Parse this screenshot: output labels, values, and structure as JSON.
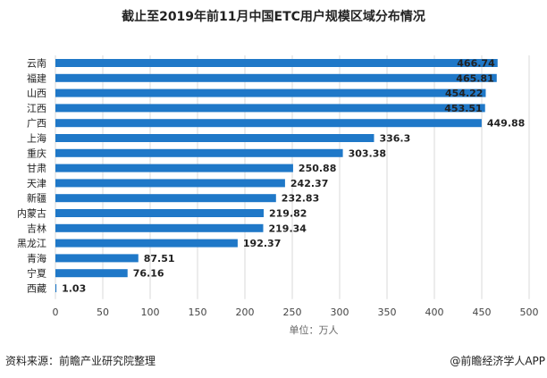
{
  "chart_data": {
    "type": "bar",
    "orientation": "horizontal",
    "title": "截止至2019年前11月中国ETC用户规模区域分布情况",
    "categories": [
      "云南",
      "福建",
      "山西",
      "江西",
      "广西",
      "上海",
      "重庆",
      "甘肃",
      "天津",
      "新疆",
      "内蒙古",
      "吉林",
      "黑龙江",
      "青海",
      "宁夏",
      "西藏"
    ],
    "values": [
      466.74,
      465.81,
      454.22,
      453.51,
      449.88,
      336.3,
      303.38,
      250.88,
      242.37,
      232.83,
      219.82,
      219.34,
      192.37,
      87.51,
      76.16,
      1.03
    ],
    "value_labels": [
      "466.74",
      "465.81",
      "454.22",
      "453.51",
      "449.88",
      "336.3",
      "303.38",
      "250.88",
      "242.37",
      "232.83",
      "219.82",
      "219.34",
      "192.37",
      "87.51",
      "76.16",
      "1.03"
    ],
    "xlabel": "单位：万人",
    "xlim": [
      0,
      500
    ],
    "xticks": [
      "0",
      "50",
      "100",
      "150",
      "200",
      "250",
      "300",
      "350",
      "400",
      "450",
      "500"
    ],
    "grid": true,
    "bar_color": "#1f78c8"
  },
  "footer": {
    "source": "资料来源：前瞻产业研究院整理",
    "credit": "@前瞻经济学人APP"
  }
}
